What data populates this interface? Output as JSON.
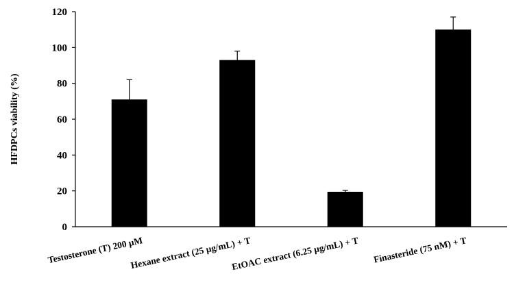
{
  "chart_data": {
    "type": "bar",
    "title": "",
    "xlabel": "",
    "ylabel": "HFDPCs viability  (%)",
    "ylim": [
      0,
      120
    ],
    "yticks": [
      0,
      20,
      40,
      60,
      80,
      100,
      120
    ],
    "categories": [
      "Testosterone (T) 200 µM",
      "Hexane extract (25 µg/mL) + T",
      "EtOAC extract (6.25 µg/mL) + T",
      "Finasteride (75 nM) + T"
    ],
    "values": [
      71,
      93,
      19.5,
      110
    ],
    "errors": [
      11,
      5,
      0.8,
      7
    ],
    "bar_color": "#000000",
    "grid": false,
    "legend": "none"
  }
}
